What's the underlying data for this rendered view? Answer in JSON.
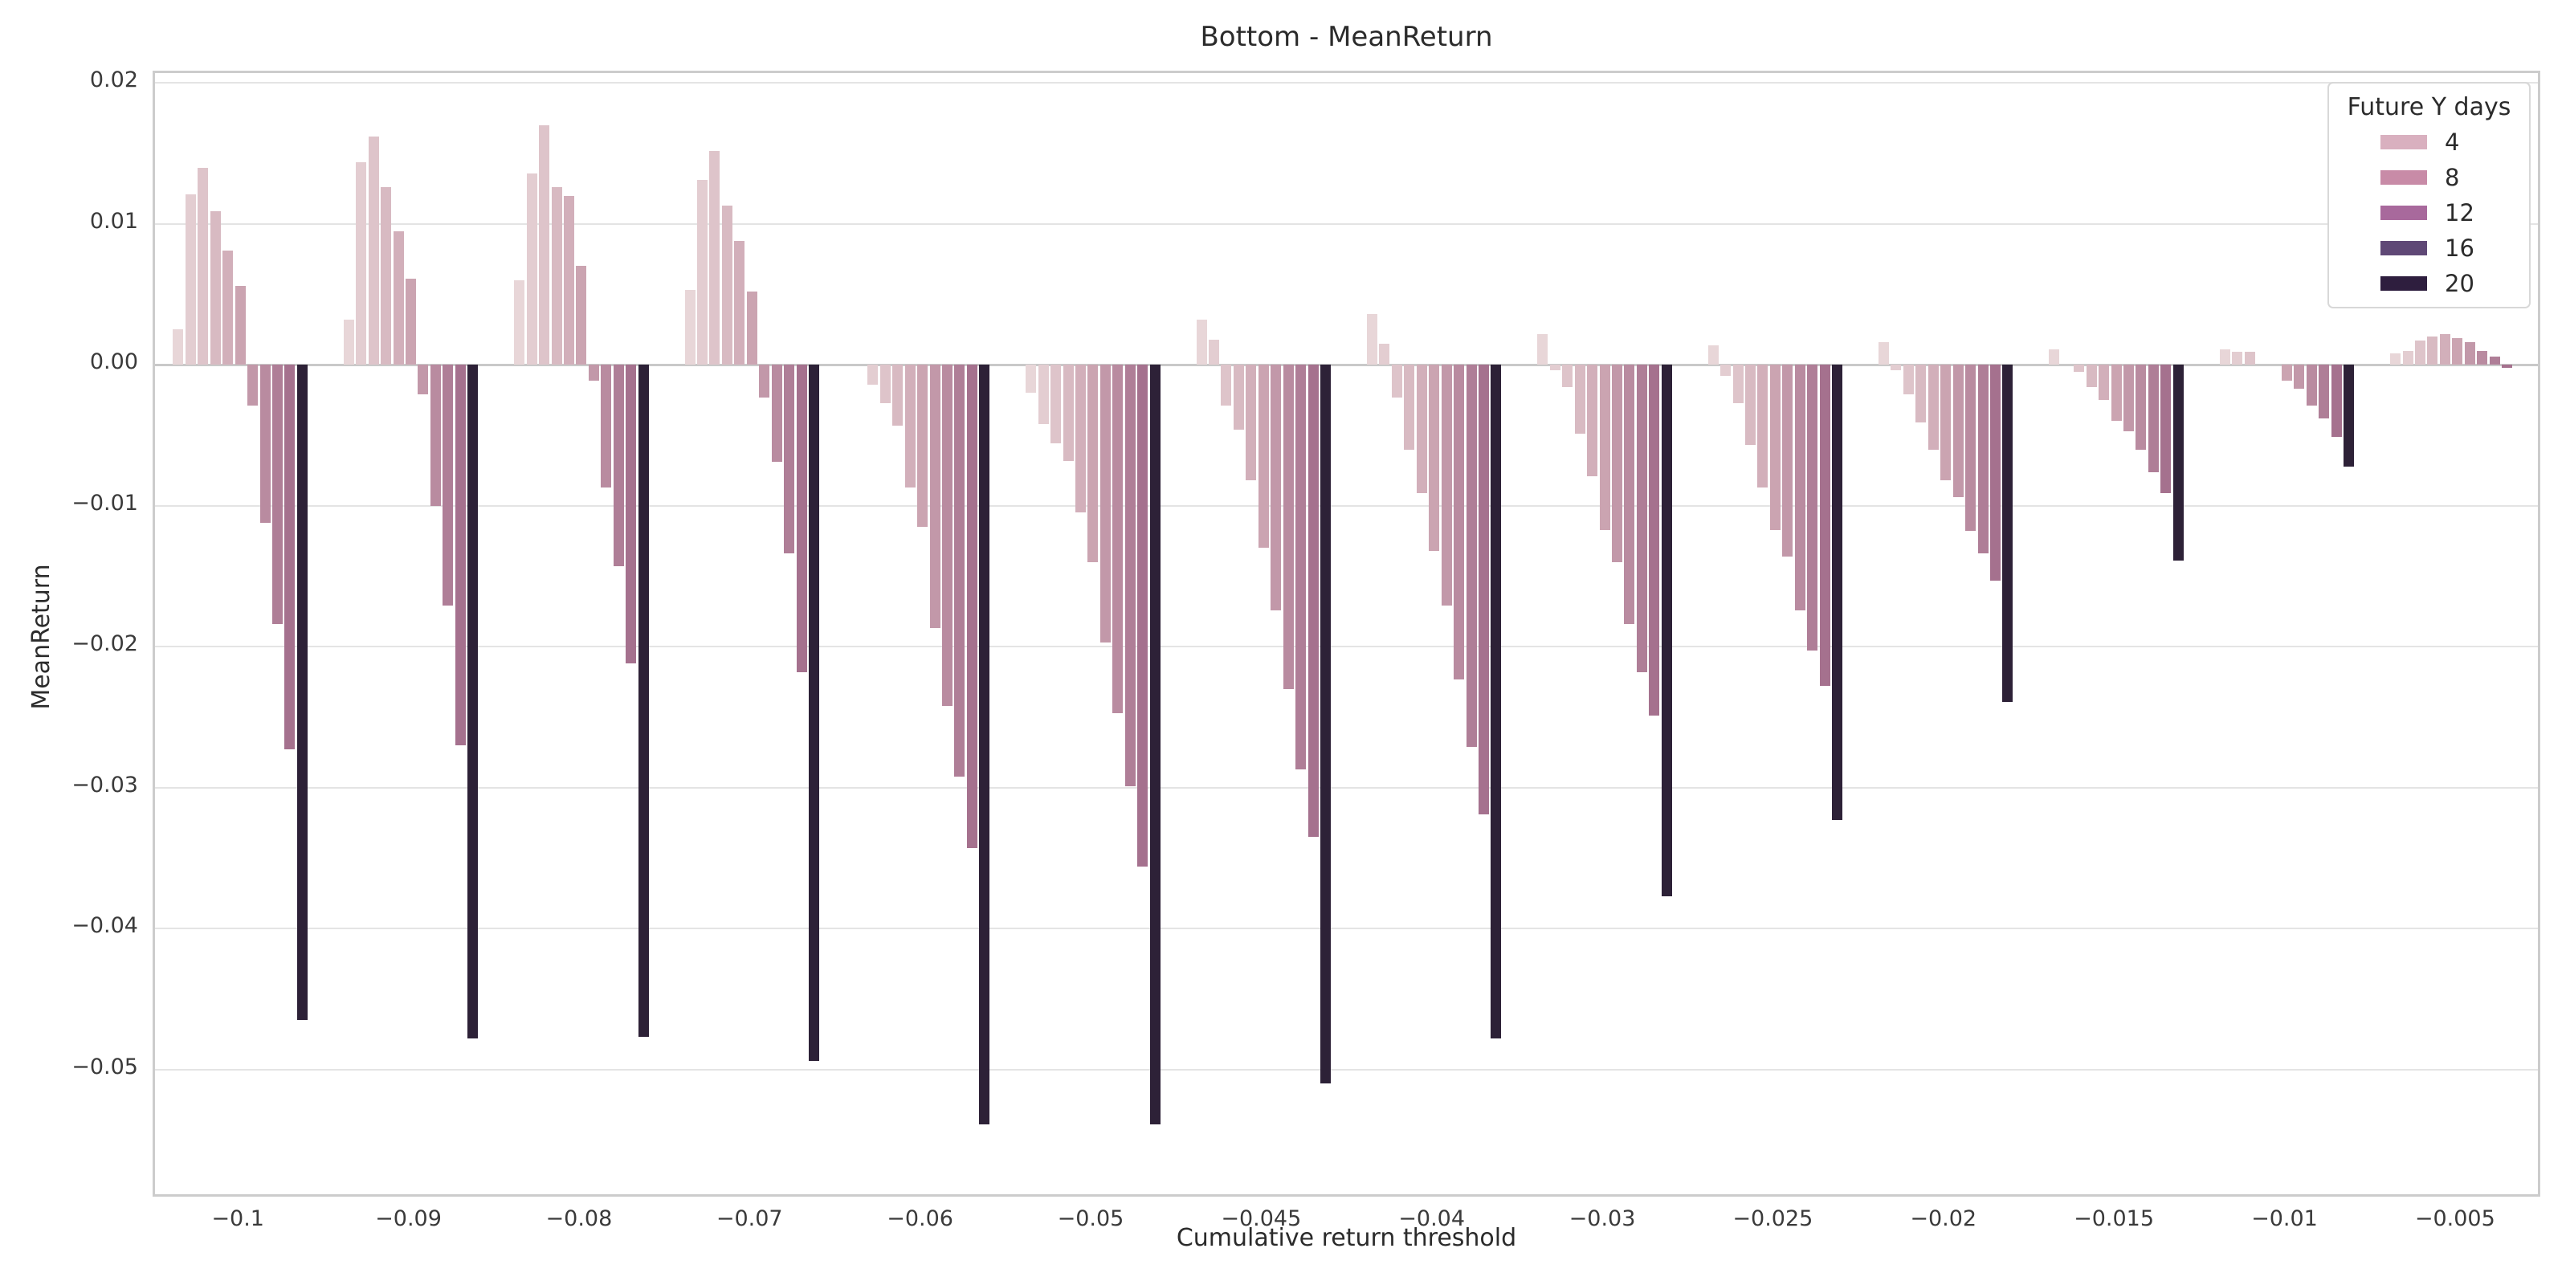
{
  "title": "Bottom - MeanReturn",
  "legend": {
    "title": "Future Y days",
    "entries": [
      {
        "label": "4",
        "color": "#d9b0bf"
      },
      {
        "label": "8",
        "color": "#c88ba7"
      },
      {
        "label": "12",
        "color": "#a8699c"
      },
      {
        "label": "16",
        "color": "#5f4876"
      },
      {
        "label": "20",
        "color": "#2e1e3e"
      }
    ]
  },
  "chart_data": {
    "type": "bar",
    "title": "Bottom - MeanReturn",
    "xlabel": "Cumulative return threshold",
    "ylabel": "MeanReturn",
    "grid": "horizontal",
    "legend_position": "top-right",
    "ylim": [
      -0.0592,
      0.0207
    ],
    "yticks": [
      {
        "label": "0.02",
        "value": 0.02
      },
      {
        "label": "0.01",
        "value": 0.01
      },
      {
        "label": "0.00",
        "value": 0.0
      },
      {
        "label": "−0.01",
        "value": -0.01
      },
      {
        "label": "−0.02",
        "value": -0.02
      },
      {
        "label": "−0.03",
        "value": -0.03
      },
      {
        "label": "−0.04",
        "value": -0.04
      },
      {
        "label": "−0.05",
        "value": -0.05
      }
    ],
    "palette": [
      "#e8d6d8",
      "#e3cdd1",
      "#dec4ca",
      "#d8bac2",
      "#d2afba",
      "#cba4b1",
      "#c298a9",
      "#b98ba0",
      "#af7e97",
      "#a5718e",
      "#2d2137"
    ],
    "groups": [
      {
        "label": "−0.1",
        "values": [
          0.0025,
          0.0121,
          0.014,
          0.0109,
          0.0081,
          0.0056,
          -0.0029,
          -0.0112,
          -0.0184,
          -0.0273,
          -0.0465
        ]
      },
      {
        "label": "−0.09",
        "values": [
          0.0032,
          0.0144,
          0.0162,
          0.0126,
          0.0095,
          0.0061,
          -0.0021,
          -0.01,
          -0.0171,
          -0.027,
          -0.0478
        ]
      },
      {
        "label": "−0.08",
        "values": [
          0.006,
          0.0136,
          0.017,
          0.0126,
          0.012,
          0.007,
          -0.0011,
          -0.0087,
          -0.0143,
          -0.0212,
          -0.0477
        ]
      },
      {
        "label": "−0.07",
        "values": [
          0.0053,
          0.0131,
          0.0152,
          0.0113,
          0.0088,
          0.0052,
          -0.0023,
          -0.0069,
          -0.0134,
          -0.0218,
          -0.0494
        ]
      },
      {
        "label": "−0.06",
        "values": [
          0,
          -0.0014,
          -0.0027,
          -0.0043,
          -0.0087,
          -0.0115,
          -0.0187,
          -0.0242,
          -0.0292,
          -0.0343,
          -0.0539
        ]
      },
      {
        "label": "−0.05",
        "values": [
          -0.002,
          -0.0042,
          -0.0056,
          -0.0068,
          -0.0105,
          -0.014,
          -0.0197,
          -0.0247,
          -0.0299,
          -0.0356,
          -0.0539
        ]
      },
      {
        "label": "−0.045",
        "values": [
          0.0032,
          0.0018,
          -0.0029,
          -0.0046,
          -0.0082,
          -0.013,
          -0.0174,
          -0.023,
          -0.0287,
          -0.0335,
          -0.051
        ]
      },
      {
        "label": "−0.04",
        "values": [
          0.0036,
          0.0015,
          -0.0023,
          -0.006,
          -0.0091,
          -0.0132,
          -0.0171,
          -0.0223,
          -0.0271,
          -0.0319,
          -0.0478
        ]
      },
      {
        "label": "−0.03",
        "values": [
          0.0022,
          -0.0004,
          -0.0016,
          -0.0049,
          -0.0079,
          -0.0117,
          -0.014,
          -0.0184,
          -0.0218,
          -0.0249,
          -0.0377
        ]
      },
      {
        "label": "−0.025",
        "values": [
          0.0014,
          -0.0008,
          -0.0027,
          -0.0057,
          -0.0087,
          -0.0117,
          -0.0136,
          -0.0174,
          -0.0203,
          -0.0228,
          -0.0323
        ]
      },
      {
        "label": "−0.02",
        "values": [
          0.0016,
          -0.0004,
          -0.0021,
          -0.0041,
          -0.006,
          -0.0082,
          -0.0094,
          -0.0118,
          -0.0134,
          -0.0153,
          -0.0239
        ]
      },
      {
        "label": "−0.015",
        "values": [
          0.0011,
          0,
          -0.0005,
          -0.0016,
          -0.0025,
          -0.004,
          -0.0047,
          -0.006,
          -0.0076,
          -0.0091,
          -0.0139
        ]
      },
      {
        "label": "−0.01",
        "values": [
          0.0011,
          0.0009,
          0.0009,
          0,
          0,
          -0.0011,
          -0.0017,
          -0.0029,
          -0.0038,
          -0.0051,
          -0.0072
        ]
      },
      {
        "label": "−0.005",
        "values": [
          0.0008,
          0.001,
          0.0017,
          0.002,
          0.0022,
          0.0019,
          0.0016,
          0.001,
          0.0006,
          -0.0002,
          0
        ]
      }
    ]
  }
}
